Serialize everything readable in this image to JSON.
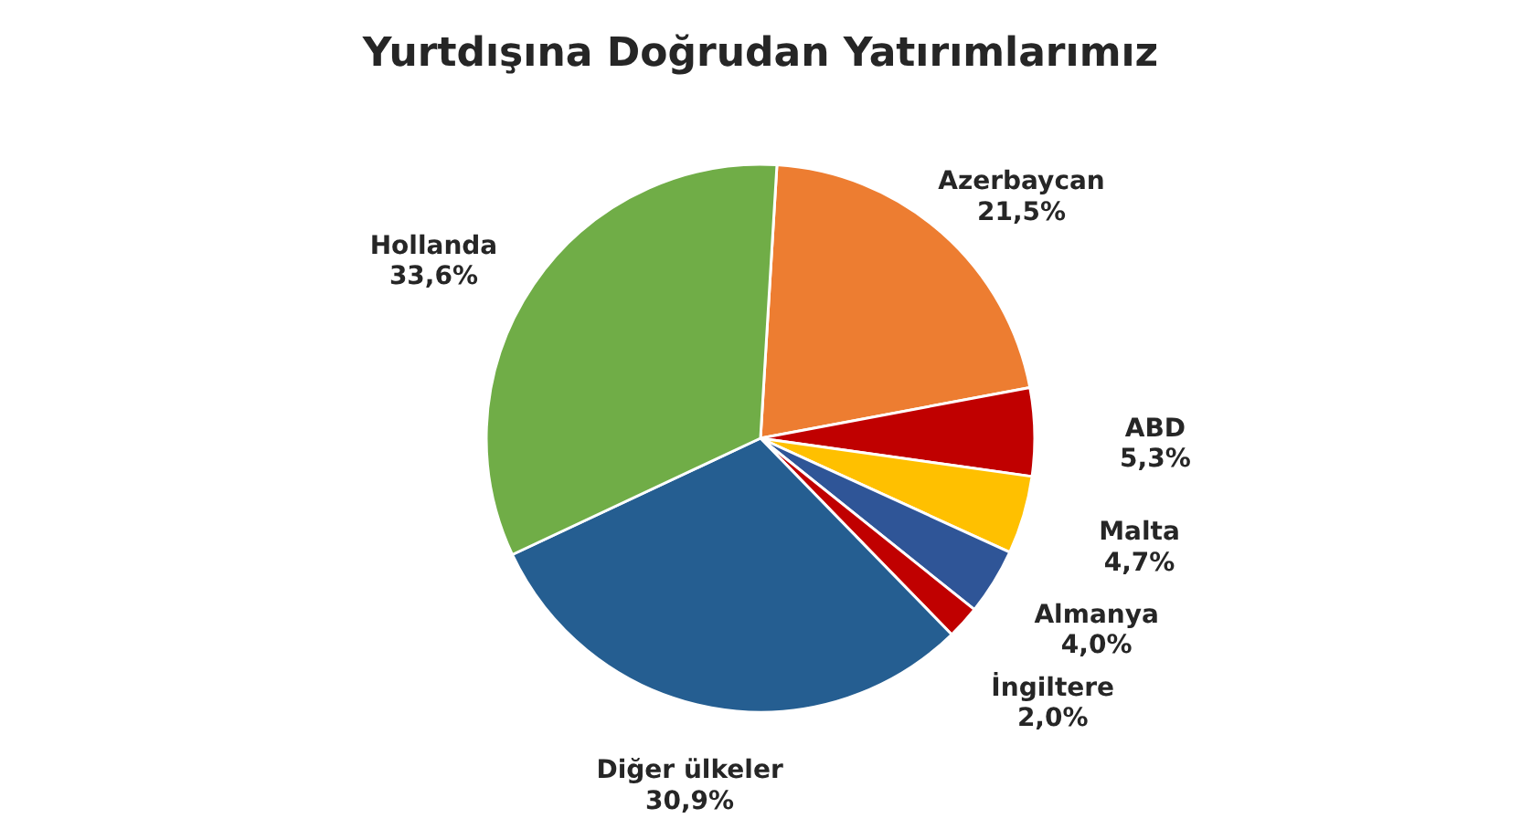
{
  "chart_data": {
    "type": "pie",
    "title": "Yurtdışına Doğrudan Yatırımlarımız",
    "categories": [
      "Azerbaycan",
      "ABD",
      "Malta",
      "Almanya",
      "İngiltere",
      "Diğer ülkeler",
      "Hollanda"
    ],
    "values": [
      21.5,
      5.3,
      4.7,
      4.0,
      2.0,
      30.9,
      33.6
    ],
    "value_labels": [
      "21,5%",
      "5,3%",
      "4,7%",
      "4,0%",
      "2,0%",
      "30,9%",
      "33,6%"
    ],
    "colors": [
      "#ed7d31",
      "#c00000",
      "#ffc000",
      "#2f5597",
      "#c00000",
      "#255e91",
      "#70ad47"
    ]
  }
}
